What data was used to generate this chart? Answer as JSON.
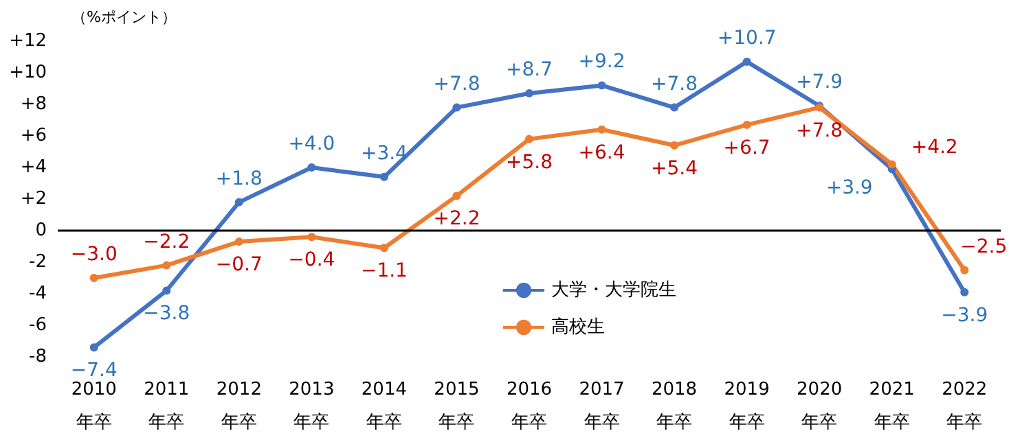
{
  "chart_data": {
    "type": "line",
    "ylabel": "（%ポイント）",
    "categories": [
      "2010\n年卒",
      "2011\n年卒",
      "2012\n年卒",
      "2013\n年卒",
      "2014\n年卒",
      "2015\n年卒",
      "2016\n年卒",
      "2017\n年卒",
      "2018\n年卒",
      "2019\n年卒",
      "2020\n年卒",
      "2021\n年卒",
      "2022\n年卒"
    ],
    "series": [
      {
        "name": "大学・大学院生",
        "color": "#4472c4",
        "values": [
          -7.4,
          -3.8,
          1.8,
          4.0,
          3.4,
          7.8,
          8.7,
          9.2,
          7.8,
          10.7,
          7.9,
          3.9,
          -3.9
        ],
        "value_labels": [
          "−7.4",
          "−3.8",
          "+1.8",
          "+4.0",
          "+3.4",
          "+7.8",
          "+8.7",
          "+9.2",
          "+7.8",
          "+10.7",
          "+7.9",
          "+3.9",
          "−3.9"
        ]
      },
      {
        "name": "高校生",
        "color": "#ed7d31",
        "values": [
          -3.0,
          -2.2,
          -0.7,
          -0.4,
          -1.1,
          2.2,
          5.8,
          6.4,
          5.4,
          6.7,
          7.8,
          4.2,
          -2.5
        ],
        "value_labels": [
          "−3.0",
          "−2.2",
          "−0.7",
          "−0.4",
          "−1.1",
          "+2.2",
          "+5.8",
          "+6.4",
          "+5.4",
          "+6.7",
          "+7.8",
          "+4.2",
          "−2.5"
        ]
      }
    ],
    "ylim": [
      -8,
      12
    ],
    "yticks": [
      -8,
      -6,
      -4,
      -2,
      0,
      {
        "value": 2,
        "label": "+2"
      },
      {
        "value": 4,
        "label": "+4"
      },
      {
        "value": 6,
        "label": "+6"
      },
      {
        "value": 8,
        "label": "+8"
      },
      {
        "value": 10,
        "label": "+10"
      },
      {
        "value": 12,
        "label": "+12"
      }
    ],
    "ref_lines": [
      {
        "axis": "y",
        "value": 0,
        "color": "#000000"
      }
    ],
    "grid": false,
    "legend": "bottom",
    "marker": "circle",
    "line_style": "solid"
  }
}
